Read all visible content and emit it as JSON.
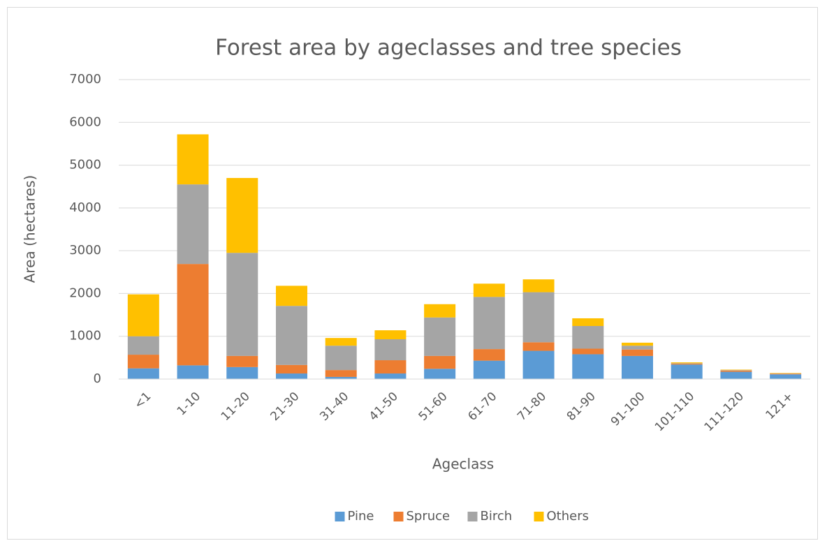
{
  "chart_data": {
    "type": "stacked_bar",
    "title": "Forest area by ageclasses and tree species",
    "x_label": "Ageclass",
    "y_label": "Area (hectares)",
    "categories": [
      "<1",
      "1-10",
      "11-20",
      "21-30",
      "31-40",
      "41-50",
      "51-60",
      "61-70",
      "71-80",
      "81-90",
      "91-100",
      "101-110",
      "111-120",
      "121+"
    ],
    "series": [
      {
        "name": "Pine",
        "color": "#5b9bd5",
        "values": [
          250,
          320,
          280,
          130,
          50,
          130,
          240,
          430,
          660,
          580,
          540,
          340,
          170,
          110
        ]
      },
      {
        "name": "Spruce",
        "color": "#ed7d31",
        "values": [
          320,
          2370,
          260,
          200,
          160,
          310,
          300,
          270,
          200,
          130,
          150,
          20,
          30,
          15
        ]
      },
      {
        "name": "Birch",
        "color": "#a5a5a5",
        "values": [
          430,
          1860,
          2410,
          1380,
          570,
          490,
          900,
          1220,
          1170,
          530,
          90,
          10,
          10,
          5
        ]
      },
      {
        "name": "Others",
        "color": "#ffc000",
        "values": [
          980,
          1170,
          1750,
          470,
          180,
          210,
          310,
          310,
          300,
          180,
          70,
          20,
          10,
          10
        ]
      }
    ],
    "ylim": [
      0,
      7000
    ],
    "yticks": [
      0,
      1000,
      2000,
      3000,
      4000,
      5000,
      6000,
      7000
    ],
    "grid": true,
    "legend": "bottom"
  }
}
